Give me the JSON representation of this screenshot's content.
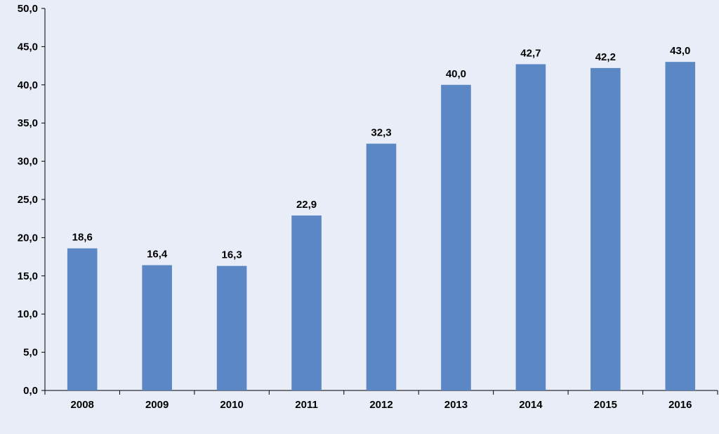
{
  "chart_data": {
    "type": "bar",
    "categories": [
      "2008",
      "2009",
      "2010",
      "2011",
      "2012",
      "2013",
      "2014",
      "2015",
      "2016"
    ],
    "values": [
      18.6,
      16.4,
      16.3,
      22.9,
      32.3,
      40.0,
      42.7,
      42.2,
      43.0
    ],
    "value_labels": [
      "18,6",
      "16,4",
      "16,3",
      "22,9",
      "32,3",
      "40,0",
      "42,7",
      "42,2",
      "43,0"
    ],
    "ylim": [
      0,
      50
    ],
    "yticks": [
      0,
      5,
      10,
      15,
      20,
      25,
      30,
      35,
      40,
      45,
      50
    ],
    "ytick_labels": [
      "0,0",
      "5,0",
      "10,0",
      "15,0",
      "20,0",
      "25,0",
      "30,0",
      "35,0",
      "40,0",
      "45,0",
      "50,0"
    ],
    "grid": false,
    "legend": "none",
    "bar_color": "#5b87c5",
    "background_color": "#e8edf7"
  }
}
